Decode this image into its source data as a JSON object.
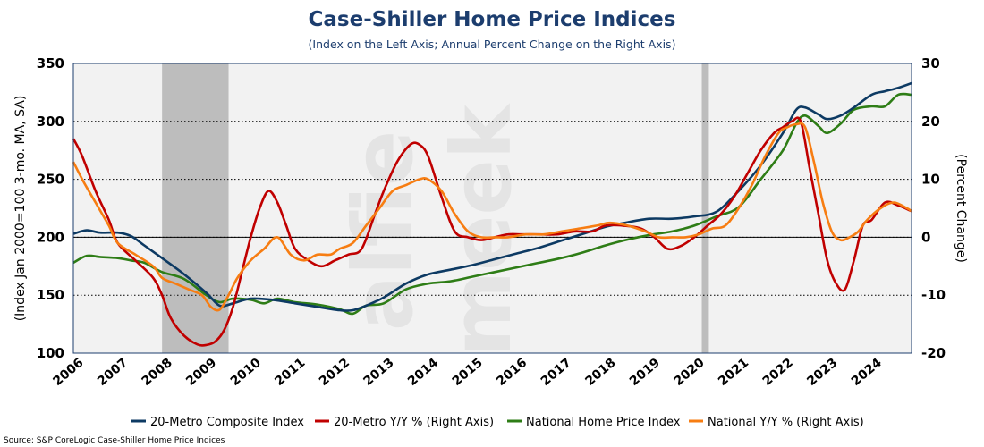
{
  "chart_data": {
    "type": "line",
    "title": "Case-Shiller Home Price Indices",
    "subtitle": "(Index on the Left Axis; Annual Percent Change on the Right Axis)",
    "ylabel": "(Index Jan 2000=100 3-mo. MA, SA)",
    "y2label": "(Percent Change)",
    "source": "Source: S&P CoreLogic Case-Shiller Home Price Indices",
    "watermark": "alfie meek",
    "xlim": [
      2006,
      2024.9
    ],
    "ylim": [
      100,
      350
    ],
    "y2lim": [
      -20,
      30
    ],
    "x_ticks": [
      "2006",
      "2007",
      "2008",
      "2009",
      "2010",
      "2011",
      "2012",
      "2013",
      "2014",
      "2015",
      "2016",
      "2017",
      "2018",
      "2019",
      "2020",
      "2021",
      "2022",
      "2023",
      "2024"
    ],
    "y_ticks": [
      "100",
      "150",
      "200",
      "250",
      "300",
      "350"
    ],
    "y2_ticks": [
      "-20",
      "-10",
      "0",
      "10",
      "20",
      "30"
    ],
    "recessions": [
      [
        2008.0,
        2009.5
      ],
      [
        2020.17,
        2020.33
      ]
    ],
    "grid": "horizontal dotted",
    "legend_position": "bottom",
    "series": [
      {
        "name": "20-Metro Composite Index",
        "axis": "left",
        "color": "#0d3a63",
        "x": [
          2006.0,
          2006.3,
          2006.6,
          2007.0,
          2007.3,
          2007.6,
          2008.0,
          2008.5,
          2009.0,
          2009.3,
          2009.6,
          2010.0,
          2010.5,
          2011.0,
          2011.5,
          2012.0,
          2012.3,
          2012.6,
          2013.0,
          2013.5,
          2014.0,
          2014.5,
          2015.0,
          2015.5,
          2016.0,
          2016.5,
          2017.0,
          2017.5,
          2018.0,
          2018.5,
          2019.0,
          2019.5,
          2020.0,
          2020.5,
          2021.0,
          2021.5,
          2022.0,
          2022.3,
          2022.5,
          2022.8,
          2023.0,
          2023.3,
          2023.6,
          2024.0,
          2024.3,
          2024.6,
          2024.9
        ],
        "y": [
          203,
          206,
          204,
          204,
          201,
          193,
          182,
          168,
          152,
          141,
          143,
          147,
          146,
          143,
          140,
          137,
          137,
          141,
          148,
          160,
          168,
          172,
          176,
          181,
          186,
          191,
          197,
          203,
          209,
          213,
          216,
          216,
          218,
          222,
          240,
          262,
          290,
          310,
          312,
          306,
          302,
          305,
          312,
          323,
          326,
          329,
          333
        ]
      },
      {
        "name": "20-Metro Y/Y % (Right Axis)",
        "axis": "right",
        "color": "#c00000",
        "x": [
          2006.0,
          2006.2,
          2006.5,
          2006.8,
          2007.0,
          2007.4,
          2007.8,
          2008.0,
          2008.2,
          2008.5,
          2008.8,
          2009.0,
          2009.2,
          2009.4,
          2009.6,
          2009.8,
          2010.0,
          2010.2,
          2010.4,
          2010.6,
          2010.8,
          2011.0,
          2011.3,
          2011.6,
          2011.9,
          2012.2,
          2012.5,
          2012.8,
          2013.0,
          2013.3,
          2013.6,
          2013.8,
          2014.0,
          2014.3,
          2014.6,
          2014.9,
          2015.2,
          2015.5,
          2015.8,
          2016.1,
          2016.5,
          2016.9,
          2017.3,
          2017.7,
          2018.0,
          2018.4,
          2018.8,
          2019.1,
          2019.4,
          2019.7,
          2020.0,
          2020.3,
          2020.6,
          2020.9,
          2021.2,
          2021.5,
          2021.8,
          2022.0,
          2022.2,
          2022.4,
          2022.6,
          2022.8,
          2023.0,
          2023.2,
          2023.4,
          2023.6,
          2023.8,
          2024.0,
          2024.3,
          2024.6,
          2024.9
        ],
        "y": [
          17,
          14,
          8,
          3,
          -1,
          -4,
          -7,
          -10,
          -14,
          -17,
          -18.5,
          -18.6,
          -18,
          -16,
          -12,
          -6,
          0,
          5,
          8,
          6,
          2,
          -2,
          -4,
          -5,
          -4,
          -3,
          -2,
          4,
          8,
          13,
          16,
          16,
          14,
          7,
          1,
          0,
          -0.5,
          0,
          0.5,
          0.5,
          0.5,
          0.5,
          1,
          1,
          2,
          2,
          1.5,
          0,
          -2,
          -1.5,
          0,
          2,
          4,
          7,
          11,
          15,
          18,
          19,
          20,
          20,
          12,
          4,
          -4,
          -8,
          -9,
          -4,
          2,
          3,
          6,
          5.5,
          4.5
        ]
      },
      {
        "name": "National Home Price Index",
        "axis": "left",
        "color": "#2e7d16",
        "x": [
          2006.0,
          2006.3,
          2006.6,
          2007.0,
          2007.3,
          2007.6,
          2008.0,
          2008.5,
          2009.0,
          2009.3,
          2009.6,
          2010.0,
          2010.3,
          2010.6,
          2011.0,
          2011.5,
          2012.0,
          2012.3,
          2012.6,
          2013.0,
          2013.5,
          2014.0,
          2014.5,
          2015.0,
          2015.5,
          2016.0,
          2016.5,
          2017.0,
          2017.5,
          2018.0,
          2018.5,
          2019.0,
          2019.5,
          2020.0,
          2020.5,
          2021.0,
          2021.5,
          2022.0,
          2022.3,
          2022.5,
          2022.8,
          2023.0,
          2023.3,
          2023.6,
          2024.0,
          2024.3,
          2024.6,
          2024.9
        ],
        "y": [
          178,
          184,
          183,
          182,
          180,
          178,
          170,
          164,
          150,
          144,
          147,
          146,
          143,
          147,
          144,
          142,
          138,
          134,
          141,
          143,
          155,
          160,
          162,
          166,
          170,
          174,
          178,
          182,
          187,
          193,
          198,
          202,
          205,
          210,
          218,
          226,
          250,
          275,
          298,
          305,
          296,
          290,
          298,
          310,
          313,
          313,
          323,
          323
        ]
      },
      {
        "name": "National Y/Y % (Right Axis)",
        "axis": "right",
        "color": "#f77d12",
        "x": [
          2006.0,
          2006.2,
          2006.5,
          2006.8,
          2007.0,
          2007.4,
          2007.8,
          2008.0,
          2008.3,
          2008.6,
          2008.9,
          2009.1,
          2009.3,
          2009.5,
          2009.7,
          2010.0,
          2010.3,
          2010.6,
          2010.9,
          2011.2,
          2011.5,
          2011.8,
          2012.0,
          2012.3,
          2012.6,
          2012.9,
          2013.2,
          2013.5,
          2013.8,
          2014.0,
          2014.3,
          2014.6,
          2014.9,
          2015.2,
          2015.5,
          2015.8,
          2016.2,
          2016.6,
          2017.0,
          2017.4,
          2017.8,
          2018.1,
          2018.5,
          2018.9,
          2019.2,
          2019.5,
          2019.8,
          2020.1,
          2020.4,
          2020.7,
          2021.0,
          2021.3,
          2021.6,
          2021.9,
          2022.1,
          2022.3,
          2022.5,
          2022.7,
          2022.9,
          2023.1,
          2023.3,
          2023.5,
          2023.7,
          2023.9,
          2024.2,
          2024.5,
          2024.8,
          2024.9
        ],
        "y": [
          13,
          10,
          6,
          2,
          -1,
          -3,
          -5,
          -7,
          -8,
          -9,
          -10,
          -12,
          -12.5,
          -10,
          -7,
          -4,
          -2,
          0,
          -3,
          -4,
          -3,
          -3,
          -2,
          -1,
          2,
          5,
          8,
          9,
          10,
          10,
          8,
          4,
          1,
          0,
          0,
          0,
          0.5,
          0.5,
          1,
          1.5,
          2,
          2.5,
          2,
          1,
          0,
          0,
          0,
          0.5,
          1.5,
          2,
          5,
          9,
          14,
          18,
          19,
          19.5,
          19,
          13,
          6,
          1,
          -0.5,
          0,
          1,
          3,
          5,
          6,
          5,
          4.5
        ]
      }
    ]
  }
}
